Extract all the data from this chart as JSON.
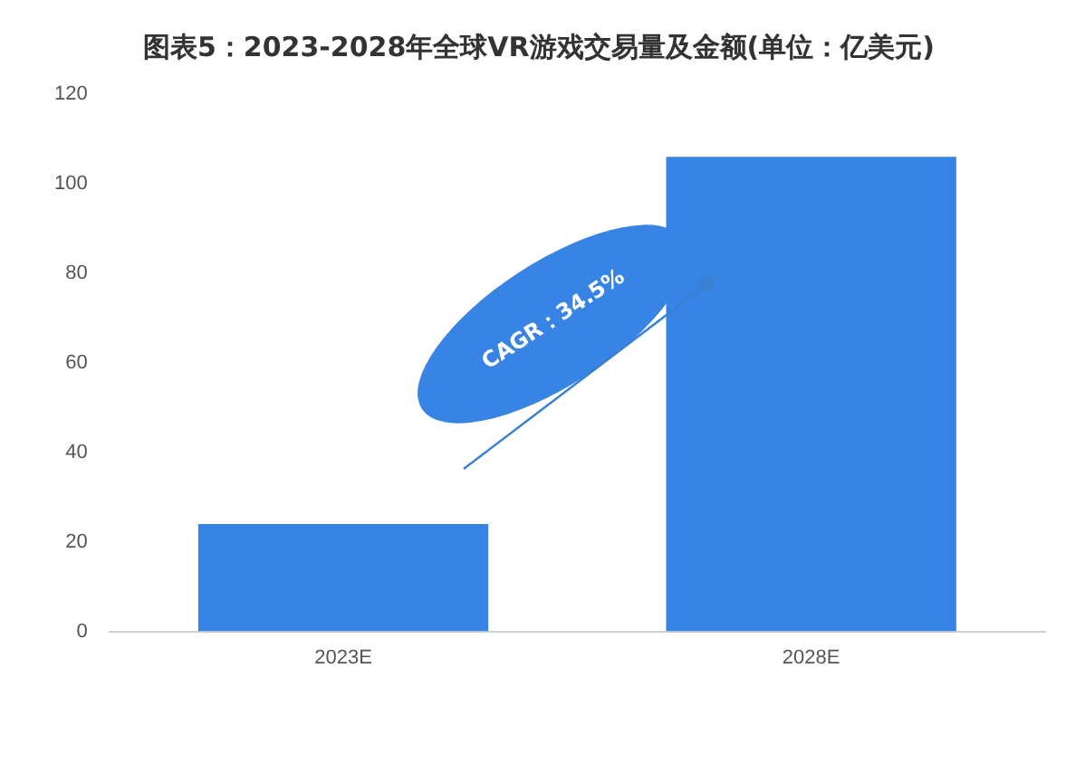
{
  "chart_data": {
    "type": "bar",
    "title": "图表5：2023-2028年全球VR游戏交易量及金额(单位：亿美元)",
    "categories": [
      "2023E",
      "2028E"
    ],
    "values": [
      24,
      106
    ],
    "color": "#3884e4",
    "ylim": [
      0,
      120
    ],
    "yticks": [
      0,
      20,
      40,
      60,
      80,
      100,
      120
    ],
    "grid": false,
    "legend": false,
    "annotations": [
      "CAGR：34.5%"
    ]
  }
}
